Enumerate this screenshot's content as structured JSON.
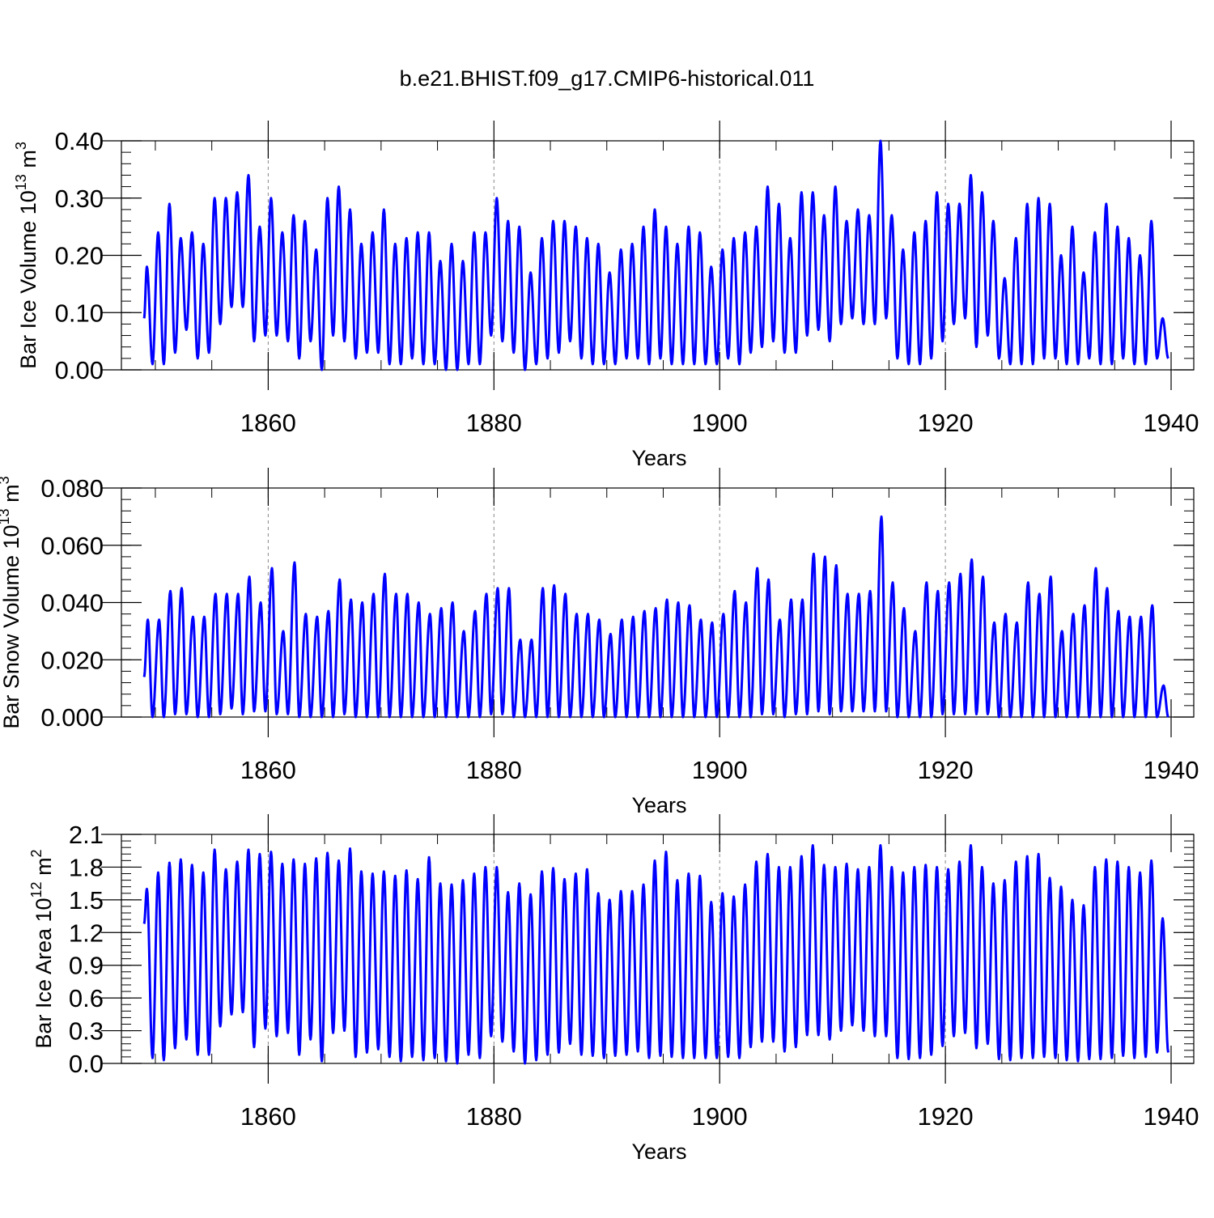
{
  "title": "b.e21.BHIST.f09_g17.CMIP6-historical.011",
  "colors": {
    "line": "#0000ff",
    "axis": "#000000",
    "grid": "#888888"
  },
  "chart_data": [
    {
      "type": "line",
      "title": "",
      "xlabel": "Years",
      "ylabel_main": "Bar Ice Volume 10",
      "ylabel_exp": "13",
      "ylabel_unit": " m",
      "ylabel_unit_exp": "3",
      "xlim": [
        1849,
        1940
      ],
      "ylim": [
        0,
        0.4
      ],
      "xticks": [
        1860,
        1880,
        1900,
        1920,
        1940
      ],
      "xtick_labels": [
        "1860",
        "1880",
        "1900",
        "1920",
        "1940"
      ],
      "yticks": [
        0,
        0.1,
        0.2,
        0.3,
        0.4
      ],
      "ytick_labels": [
        "0.00",
        "0.10",
        "0.20",
        "0.30",
        "0.40"
      ],
      "grid_x": [
        1860,
        1880,
        1900,
        1920
      ],
      "series": [
        {
          "name": "Bar Ice Volume",
          "x_start": 1849.0,
          "peak_month": 3,
          "trough_month": 9,
          "x_end": 1940,
          "annual_max": [
            0.18,
            0.24,
            0.29,
            0.23,
            0.24,
            0.22,
            0.3,
            0.3,
            0.31,
            0.34,
            0.25,
            0.3,
            0.24,
            0.27,
            0.26,
            0.21,
            0.3,
            0.32,
            0.28,
            0.22,
            0.24,
            0.28,
            0.22,
            0.23,
            0.24,
            0.24,
            0.19,
            0.22,
            0.19,
            0.24,
            0.24,
            0.3,
            0.26,
            0.25,
            0.17,
            0.23,
            0.26,
            0.26,
            0.25,
            0.23,
            0.22,
            0.17,
            0.21,
            0.22,
            0.25,
            0.28,
            0.25,
            0.22,
            0.25,
            0.24,
            0.18,
            0.21,
            0.23,
            0.24,
            0.25,
            0.32,
            0.29,
            0.23,
            0.31,
            0.31,
            0.27,
            0.32,
            0.26,
            0.28,
            0.27,
            0.4,
            0.27,
            0.21,
            0.24,
            0.26,
            0.31,
            0.29,
            0.29,
            0.34,
            0.31,
            0.26,
            0.16,
            0.23,
            0.29,
            0.3,
            0.29,
            0.2,
            0.25,
            0.17,
            0.24,
            0.29,
            0.25,
            0.23,
            0.2,
            0.26,
            0.09
          ],
          "annual_min": [
            0.09,
            0.01,
            0.01,
            0.03,
            0.07,
            0.02,
            0.03,
            0.08,
            0.11,
            0.11,
            0.05,
            0.06,
            0.06,
            0.05,
            0.02,
            0.05,
            0.0,
            0.06,
            0.05,
            0.02,
            0.03,
            0.03,
            0.01,
            0.01,
            0.02,
            0.01,
            0.01,
            0.0,
            0.0,
            0.01,
            0.01,
            0.06,
            0.05,
            0.03,
            0.0,
            0.01,
            0.02,
            0.03,
            0.05,
            0.02,
            0.01,
            0.01,
            0.01,
            0.02,
            0.02,
            0.01,
            0.02,
            0.01,
            0.01,
            0.01,
            0.01,
            0.01,
            0.02,
            0.01,
            0.03,
            0.04,
            0.05,
            0.03,
            0.03,
            0.06,
            0.07,
            0.05,
            0.08,
            0.09,
            0.08,
            0.08,
            0.09,
            0.02,
            0.01,
            0.01,
            0.02,
            0.05,
            0.08,
            0.09,
            0.04,
            0.06,
            0.02,
            0.01,
            0.01,
            0.01,
            0.02,
            0.02,
            0.01,
            0.01,
            0.02,
            0.01,
            0.01,
            0.02,
            0.01,
            0.01,
            0.02
          ]
        }
      ]
    },
    {
      "type": "line",
      "title": "",
      "xlabel": "Years",
      "ylabel_main": "Bar Snow Volume 10",
      "ylabel_exp": "13",
      "ylabel_unit": " m",
      "ylabel_unit_exp": "3",
      "xlim": [
        1849,
        1940
      ],
      "ylim": [
        0,
        0.08
      ],
      "xticks": [
        1860,
        1880,
        1900,
        1920,
        1940
      ],
      "xtick_labels": [
        "1860",
        "1880",
        "1900",
        "1920",
        "1940"
      ],
      "yticks": [
        0,
        0.02,
        0.04,
        0.06,
        0.08
      ],
      "ytick_labels": [
        "0.000",
        "0.020",
        "0.040",
        "0.060",
        "0.080"
      ],
      "grid_x": [
        1860,
        1880,
        1900,
        1920
      ],
      "series": [
        {
          "name": "Bar Snow Volume",
          "x_start": 1849.0,
          "peak_month": 4,
          "trough_month": 9,
          "x_end": 1940,
          "annual_max": [
            0.034,
            0.034,
            0.044,
            0.045,
            0.035,
            0.035,
            0.043,
            0.043,
            0.043,
            0.049,
            0.04,
            0.052,
            0.03,
            0.054,
            0.036,
            0.035,
            0.037,
            0.048,
            0.041,
            0.04,
            0.043,
            0.05,
            0.043,
            0.043,
            0.04,
            0.036,
            0.038,
            0.04,
            0.03,
            0.037,
            0.043,
            0.045,
            0.045,
            0.027,
            0.027,
            0.045,
            0.046,
            0.043,
            0.036,
            0.036,
            0.034,
            0.029,
            0.034,
            0.035,
            0.037,
            0.038,
            0.041,
            0.04,
            0.039,
            0.034,
            0.033,
            0.036,
            0.044,
            0.04,
            0.052,
            0.048,
            0.034,
            0.041,
            0.041,
            0.057,
            0.056,
            0.053,
            0.043,
            0.043,
            0.044,
            0.07,
            0.047,
            0.038,
            0.03,
            0.047,
            0.044,
            0.047,
            0.05,
            0.055,
            0.049,
            0.033,
            0.036,
            0.033,
            0.047,
            0.043,
            0.049,
            0.03,
            0.036,
            0.039,
            0.052,
            0.045,
            0.037,
            0.035,
            0.035,
            0.039,
            0.011
          ],
          "annual_min": [
            0.014,
            0.0,
            0.0,
            0.001,
            0.001,
            0.0,
            0.0,
            0.001,
            0.003,
            0.001,
            0.002,
            0.002,
            0.001,
            0.001,
            0.0,
            0.0,
            0.0,
            0.0,
            0.001,
            0.0,
            0.0,
            0.0,
            0.0,
            0.0,
            0.0,
            0.0,
            0.0,
            0.0,
            0.0,
            0.0,
            0.0,
            0.001,
            0.001,
            0.0,
            0.0,
            0.0,
            0.0,
            0.0,
            0.0,
            0.0,
            0.0,
            0.0,
            0.0,
            0.0,
            0.0,
            0.0,
            0.0,
            0.0,
            0.0,
            0.0,
            0.0,
            0.0,
            0.0,
            0.0,
            0.0,
            0.001,
            0.001,
            0.0,
            0.001,
            0.001,
            0.002,
            0.001,
            0.002,
            0.002,
            0.002,
            0.002,
            0.002,
            0.0,
            0.0,
            0.0,
            0.0,
            0.001,
            0.001,
            0.001,
            0.001,
            0.001,
            0.0,
            0.0,
            0.0,
            0.0,
            0.0,
            0.0,
            0.0,
            0.0,
            0.0,
            0.0,
            0.0,
            0.0,
            0.0,
            0.0,
            0.0
          ]
        }
      ]
    },
    {
      "type": "line",
      "title": "",
      "xlabel": "Years",
      "ylabel_main": "Bar Ice Area 10",
      "ylabel_exp": "12",
      "ylabel_unit": " m",
      "ylabel_unit_exp": "2",
      "xlim": [
        1849,
        1940
      ],
      "ylim": [
        0,
        2.1
      ],
      "xticks": [
        1860,
        1880,
        1900,
        1920,
        1940
      ],
      "xtick_labels": [
        "1860",
        "1880",
        "1900",
        "1920",
        "1940"
      ],
      "yticks": [
        0,
        0.3,
        0.6,
        0.9,
        1.2,
        1.5,
        1.8,
        2.1
      ],
      "ytick_labels": [
        "0.0",
        "0.3",
        "0.6",
        "0.9",
        "1.2",
        "1.5",
        "1.8",
        "2.1"
      ],
      "grid_x": [
        1860,
        1880,
        1900,
        1920
      ],
      "series": [
        {
          "name": "Bar Ice Area",
          "x_start": 1849.0,
          "peak_month": 3,
          "trough_month": 9,
          "x_end": 1940,
          "annual_max": [
            1.6,
            1.75,
            1.84,
            1.87,
            1.82,
            1.75,
            1.96,
            1.78,
            1.85,
            1.96,
            1.92,
            1.94,
            1.83,
            1.87,
            1.83,
            1.88,
            1.93,
            1.86,
            1.97,
            1.76,
            1.74,
            1.76,
            1.72,
            1.77,
            1.69,
            1.89,
            1.65,
            1.64,
            1.68,
            1.74,
            1.8,
            1.8,
            1.57,
            1.65,
            1.55,
            1.76,
            1.79,
            1.69,
            1.74,
            1.78,
            1.56,
            1.5,
            1.58,
            1.58,
            1.64,
            1.86,
            1.94,
            1.68,
            1.74,
            1.72,
            1.48,
            1.56,
            1.53,
            1.64,
            1.85,
            1.92,
            1.8,
            1.8,
            1.9,
            2.0,
            1.82,
            1.8,
            1.83,
            1.78,
            1.8,
            2.0,
            1.8,
            1.75,
            1.8,
            1.82,
            1.8,
            1.78,
            1.85,
            2.0,
            1.8,
            1.65,
            1.68,
            1.85,
            1.9,
            1.92,
            1.7,
            1.62,
            1.5,
            1.45,
            1.8,
            1.87,
            1.85,
            1.8,
            1.75,
            1.86,
            1.33
          ],
          "annual_min": [
            1.28,
            0.05,
            0.03,
            0.14,
            0.22,
            0.08,
            0.08,
            0.34,
            0.45,
            0.47,
            0.15,
            0.32,
            0.25,
            0.28,
            0.08,
            0.22,
            0.02,
            0.28,
            0.3,
            0.06,
            0.1,
            0.13,
            0.06,
            0.02,
            0.06,
            0.03,
            0.05,
            0.02,
            0.0,
            0.08,
            0.05,
            0.25,
            0.2,
            0.11,
            0.0,
            0.03,
            0.08,
            0.1,
            0.18,
            0.08,
            0.07,
            0.05,
            0.07,
            0.08,
            0.11,
            0.05,
            0.07,
            0.06,
            0.05,
            0.05,
            0.05,
            0.05,
            0.06,
            0.05,
            0.15,
            0.2,
            0.2,
            0.11,
            0.15,
            0.26,
            0.26,
            0.22,
            0.3,
            0.35,
            0.3,
            0.25,
            0.25,
            0.05,
            0.04,
            0.05,
            0.08,
            0.16,
            0.25,
            0.28,
            0.14,
            0.18,
            0.04,
            0.03,
            0.05,
            0.05,
            0.06,
            0.05,
            0.03,
            0.02,
            0.04,
            0.04,
            0.05,
            0.07,
            0.05,
            0.06,
            0.1
          ]
        }
      ]
    }
  ]
}
